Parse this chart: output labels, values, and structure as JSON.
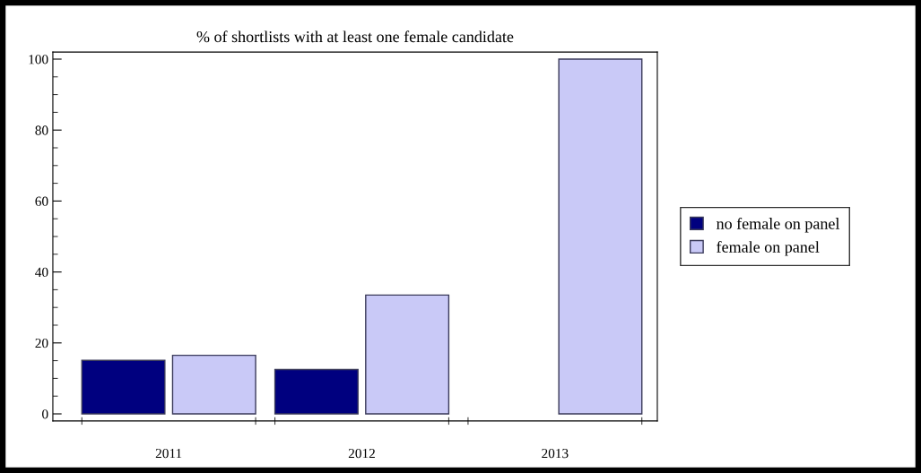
{
  "chart_data": {
    "type": "bar",
    "title": "% of shortlists with at least one female candidate",
    "categories": [
      "2011",
      "2012",
      "2013"
    ],
    "series": [
      {
        "name": "no female on panel",
        "color": "#00007f",
        "values": [
          15.1,
          12.5,
          null
        ]
      },
      {
        "name": "female on panel",
        "color": "#c9c9f7",
        "values": [
          16.5,
          33.5,
          100
        ]
      }
    ],
    "ylim": [
      -2,
      102
    ],
    "yticks": [
      0,
      20,
      40,
      60,
      80,
      100
    ],
    "grid": false,
    "legend": "right"
  }
}
